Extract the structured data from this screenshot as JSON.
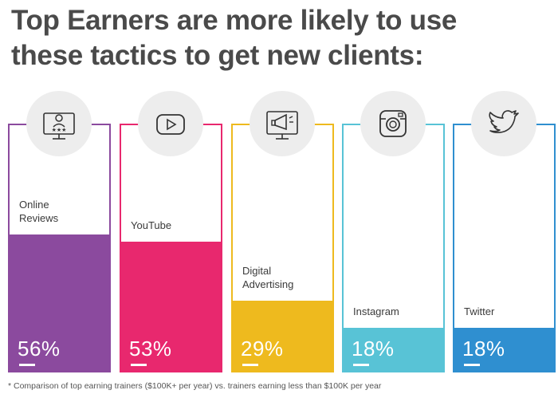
{
  "title_line1": "Top Earners are more likely to use",
  "title_line2": "these tactics to get new clients:",
  "footnote": "* Comparison of top earning trainers ($100K+ per year) vs. trainers earning less than $100K per year",
  "chart_data": {
    "type": "bar",
    "categories": [
      "Online Reviews",
      "YouTube",
      "Digital Advertising",
      "Instagram",
      "Twitter"
    ],
    "label_lines": [
      [
        "Online",
        "Reviews"
      ],
      [
        "YouTube"
      ],
      [
        "Digital",
        "Advertising"
      ],
      [
        "Instagram"
      ],
      [
        "Twitter"
      ]
    ],
    "values": [
      56,
      53,
      29,
      18,
      18
    ],
    "value_labels": [
      "56%",
      "53%",
      "29%",
      "18%",
      "18%"
    ],
    "colors": [
      "#8B4A9E",
      "#E8286E",
      "#EEBA1E",
      "#58C3D6",
      "#2F8FD0"
    ],
    "icons": [
      "review-monitor-icon",
      "youtube-icon",
      "megaphone-monitor-icon",
      "instagram-icon",
      "twitter-icon"
    ],
    "ylim": [
      0,
      100
    ]
  }
}
